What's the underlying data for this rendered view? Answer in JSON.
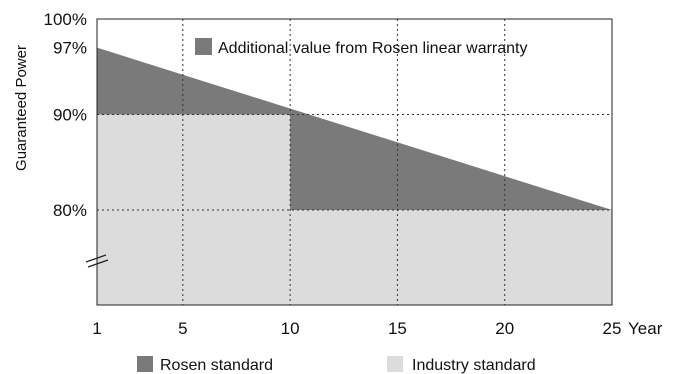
{
  "chart_data": {
    "type": "area",
    "ylabel": "Guaranteed Power",
    "xlabel": "Year",
    "x_ticks": [
      "1",
      "5",
      "10",
      "15",
      "20",
      "25"
    ],
    "x_tick_values": [
      1,
      5,
      10,
      15,
      20,
      25
    ],
    "y_ticks": [
      "80%",
      "90%",
      "97%",
      "100%"
    ],
    "y_tick_values": [
      80,
      90,
      97,
      100
    ],
    "xlim": [
      1,
      25
    ],
    "ylim": [
      70,
      100
    ],
    "axis_break": true,
    "grid": "dotted",
    "series": [
      {
        "name": "Industry standard",
        "color": "#dcdcdc",
        "x": [
          1,
          10,
          10,
          25
        ],
        "y": [
          90,
          90,
          80,
          80
        ]
      },
      {
        "name": "Rosen standard",
        "color": "#7a7a7a",
        "x": [
          1,
          25
        ],
        "y": [
          97,
          80
        ]
      }
    ],
    "annotation": {
      "label": "Additional value from Rosen linear warranty",
      "color": "#7a7a7a"
    },
    "legend": [
      {
        "label": "Rosen standard",
        "color": "#7a7a7a"
      },
      {
        "label": "Industry standard",
        "color": "#dcdcdc"
      }
    ],
    "legend_position": "bottom"
  }
}
